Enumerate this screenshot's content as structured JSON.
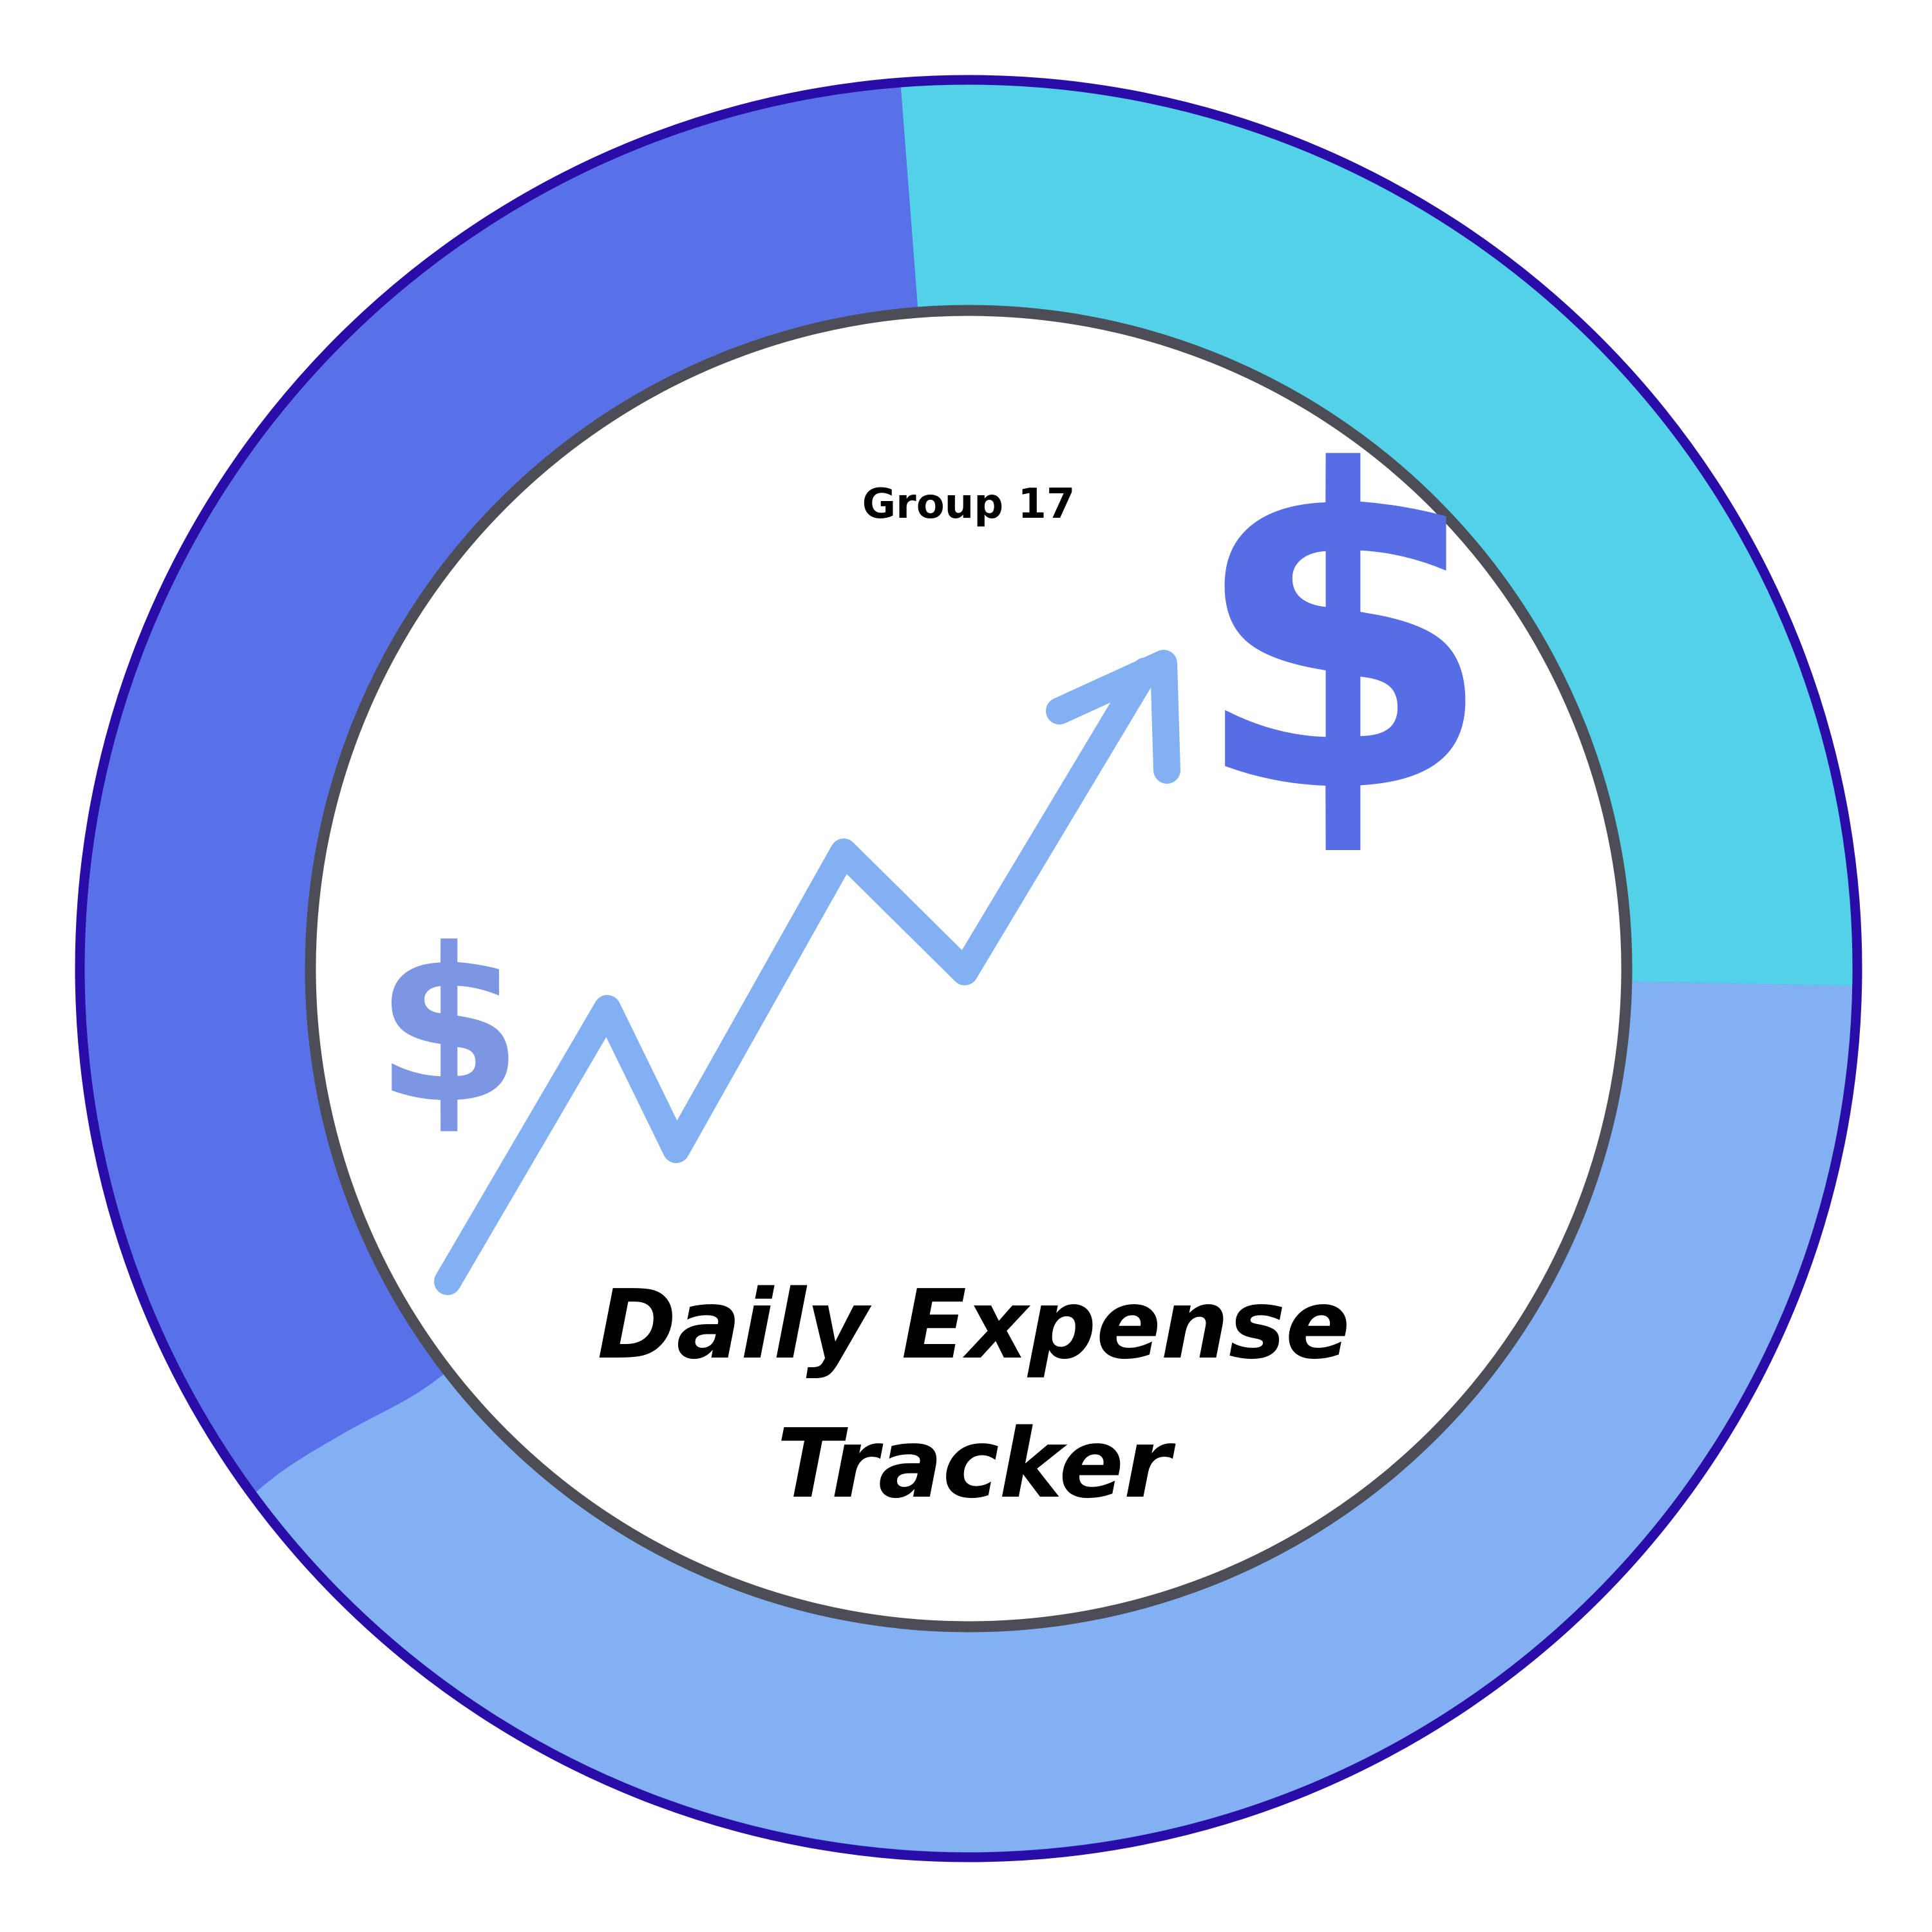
{
  "logo": {
    "group_label": "Group 17",
    "title_line1": "Daily Expense",
    "title_line2": "Tracker",
    "icons": [
      "dollar-sign-icon",
      "dollar-sign-icon",
      "trend-up-arrow-icon"
    ]
  },
  "colors": {
    "ring_blue": "#5871E8",
    "ring_cyan": "#52D1E8",
    "ring_light_blue": "#82B0F2",
    "ring_outline": "#2A0CA8",
    "inner_outline": "#4D4D55",
    "arrow": "#82B0F2",
    "dollar_large": "#566DE6",
    "dollar_small": "#7C96E3",
    "text": "#000000",
    "background": "#FFFFFF"
  }
}
